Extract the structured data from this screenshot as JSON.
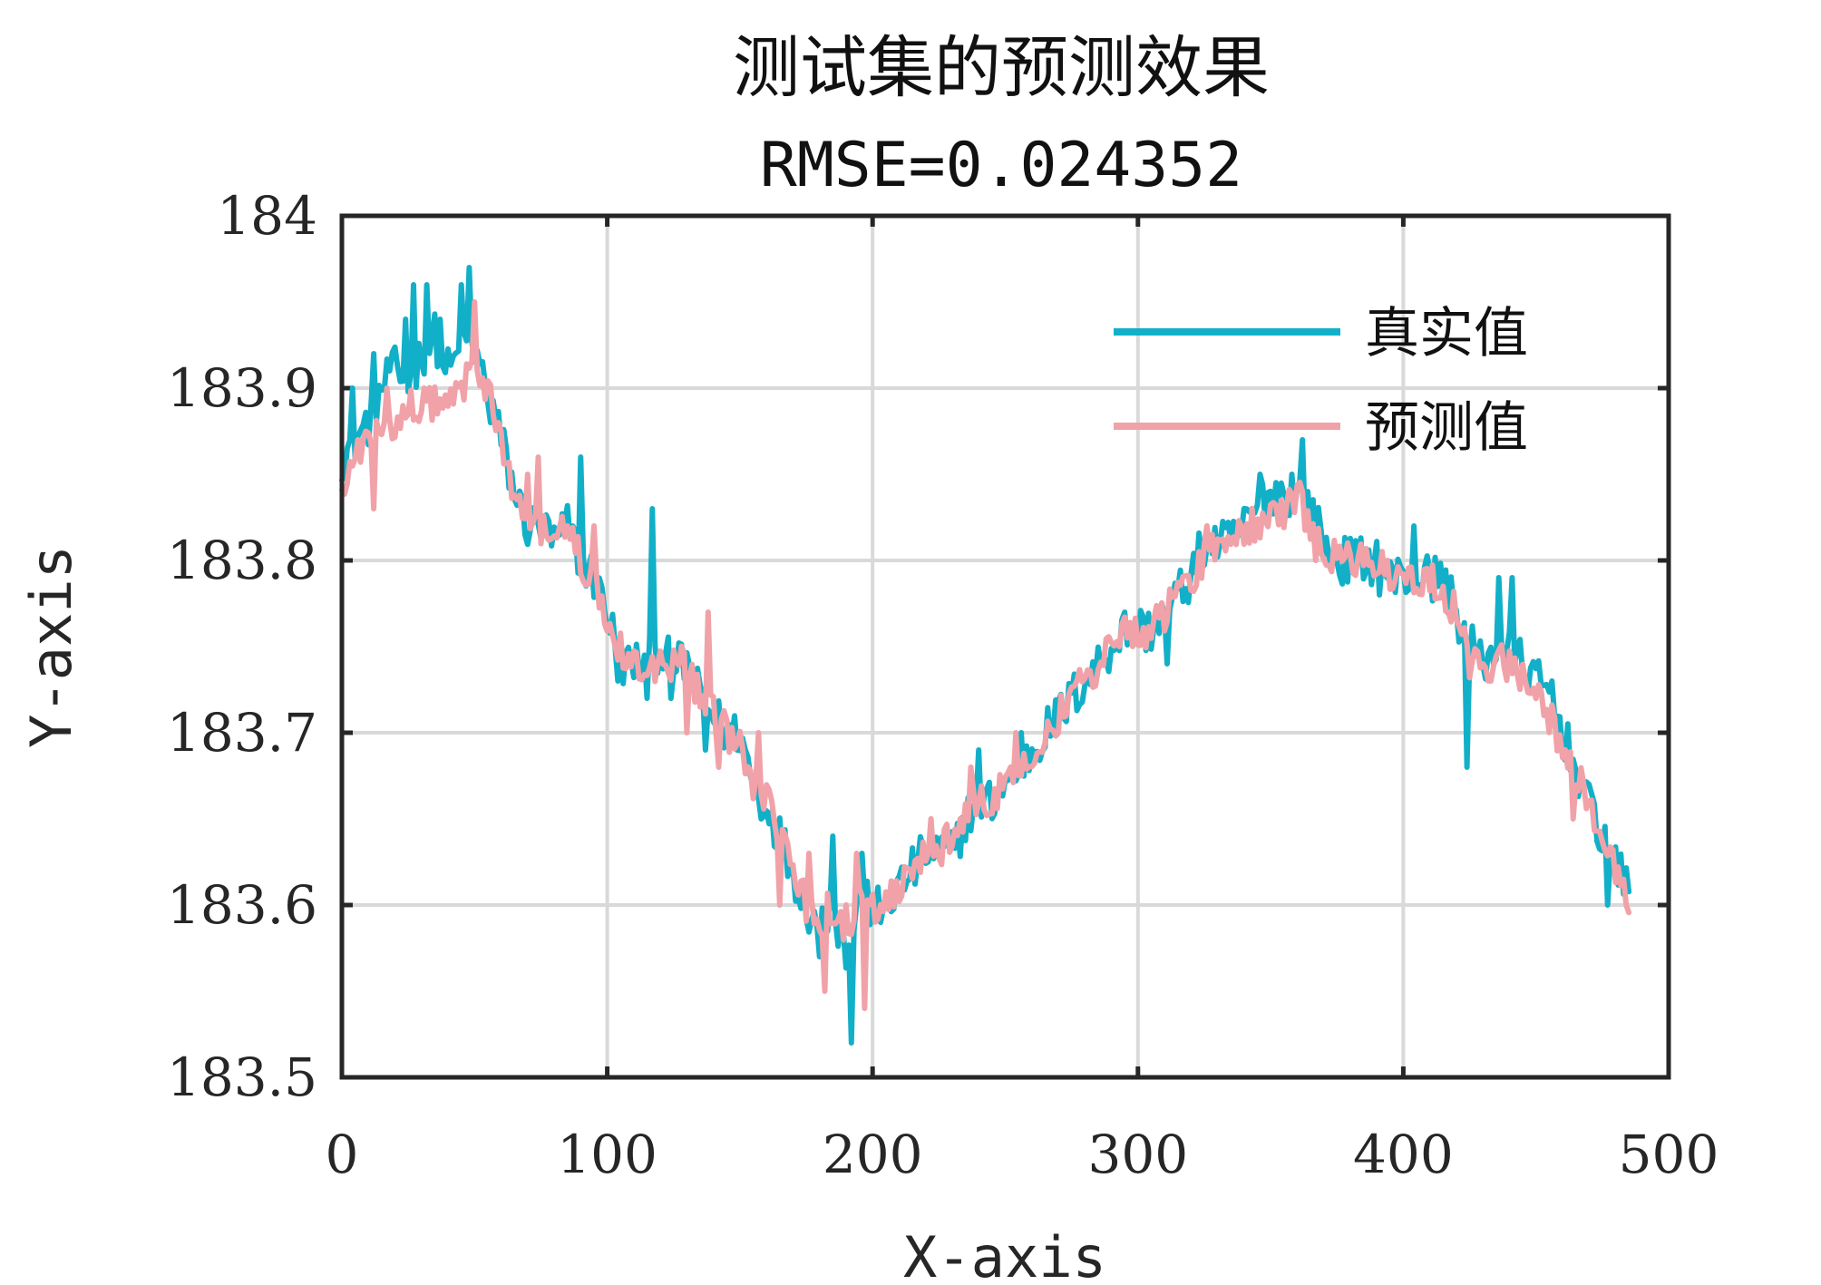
{
  "chart_data": {
    "type": "line",
    "title": "测试集的预测效果",
    "subtitle": "RMSE=0.024352",
    "xlabel": "X-axis",
    "ylabel": "Y-axis",
    "xlim": [
      0,
      500
    ],
    "ylim": [
      183.5,
      184
    ],
    "xticks": [
      "0",
      "100",
      "200",
      "300",
      "400",
      "500"
    ],
    "yticks": [
      "183.5",
      "183.6",
      "183.7",
      "183.8",
      "183.9",
      "184"
    ],
    "grid": true,
    "legend_position": "top-right",
    "colors": {
      "true": "#12b0c8",
      "pred": "#f0a2a8",
      "axis": "#262626",
      "grid": "#d9d9d9"
    },
    "series": [
      {
        "name": "真实值",
        "anchors_x": [
          0,
          5,
          10,
          15,
          20,
          25,
          30,
          35,
          40,
          45,
          50,
          55,
          60,
          65,
          70,
          75,
          80,
          85,
          90,
          95,
          100,
          105,
          110,
          115,
          120,
          125,
          130,
          135,
          140,
          145,
          150,
          155,
          160,
          165,
          170,
          175,
          180,
          185,
          190,
          195,
          200,
          205,
          210,
          215,
          220,
          225,
          230,
          235,
          240,
          245,
          250,
          255,
          260,
          265,
          270,
          275,
          280,
          285,
          290,
          295,
          300,
          305,
          310,
          315,
          320,
          325,
          330,
          335,
          340,
          345,
          350,
          355,
          360,
          365,
          370,
          375,
          380,
          385,
          390,
          395,
          400,
          405,
          410,
          415,
          420,
          425,
          430,
          435,
          440,
          445,
          450,
          455,
          460,
          465,
          470,
          475,
          480,
          485
        ],
        "anchors_y": [
          183.86,
          183.87,
          183.88,
          183.9,
          183.91,
          183.9,
          183.92,
          183.93,
          183.91,
          183.92,
          183.92,
          183.9,
          183.87,
          183.84,
          183.82,
          183.82,
          183.81,
          183.82,
          183.8,
          183.79,
          183.77,
          183.74,
          183.74,
          183.74,
          183.75,
          183.74,
          183.74,
          183.72,
          183.71,
          183.7,
          183.7,
          183.67,
          183.66,
          183.64,
          183.62,
          183.6,
          183.59,
          183.6,
          183.57,
          183.6,
          183.6,
          183.6,
          183.61,
          183.62,
          183.63,
          183.63,
          183.63,
          183.65,
          183.66,
          183.66,
          183.67,
          183.68,
          183.69,
          183.7,
          183.71,
          183.72,
          183.73,
          183.74,
          183.75,
          183.76,
          183.76,
          183.76,
          183.77,
          183.78,
          183.79,
          183.81,
          183.81,
          183.81,
          183.82,
          183.83,
          183.84,
          183.84,
          183.84,
          183.83,
          183.81,
          183.8,
          183.8,
          183.8,
          183.8,
          183.79,
          183.79,
          183.79,
          183.79,
          183.79,
          183.77,
          183.75,
          183.74,
          183.75,
          183.75,
          183.74,
          183.73,
          183.72,
          183.7,
          183.68,
          183.66,
          183.64,
          183.62,
          183.61
        ],
        "spikes": [
          [
            4,
            183.9
          ],
          [
            12,
            183.92
          ],
          [
            18,
            183.91
          ],
          [
            24,
            183.94
          ],
          [
            27,
            183.96
          ],
          [
            32,
            183.96
          ],
          [
            37,
            183.94
          ],
          [
            45,
            183.96
          ],
          [
            48,
            183.97
          ],
          [
            56,
            183.88
          ],
          [
            90,
            183.86
          ],
          [
            104,
            183.73
          ],
          [
            115,
            183.72
          ],
          [
            117,
            183.83
          ],
          [
            124,
            183.72
          ],
          [
            137,
            183.69
          ],
          [
            158,
            183.65
          ],
          [
            180,
            183.57
          ],
          [
            185,
            183.64
          ],
          [
            188,
            183.59
          ],
          [
            192,
            183.52
          ],
          [
            196,
            183.63
          ],
          [
            203,
            183.59
          ],
          [
            240,
            183.69
          ],
          [
            256,
            183.7
          ],
          [
            311,
            183.74
          ],
          [
            346,
            183.85
          ],
          [
            358,
            183.85
          ],
          [
            362,
            183.87
          ],
          [
            391,
            183.78
          ],
          [
            404,
            183.82
          ],
          [
            424,
            183.68
          ],
          [
            436,
            183.79
          ],
          [
            441,
            183.79
          ],
          [
            456,
            183.73
          ],
          [
            470,
            183.67
          ],
          [
            477,
            183.6
          ]
        ]
      },
      {
        "name": "预测值",
        "anchors_x": [
          0,
          5,
          10,
          15,
          20,
          25,
          30,
          35,
          40,
          45,
          50,
          55,
          60,
          65,
          70,
          75,
          80,
          85,
          90,
          95,
          100,
          105,
          110,
          115,
          120,
          125,
          130,
          135,
          140,
          145,
          150,
          155,
          160,
          165,
          170,
          175,
          180,
          185,
          190,
          195,
          200,
          205,
          210,
          215,
          220,
          225,
          230,
          235,
          240,
          245,
          250,
          255,
          260,
          265,
          270,
          275,
          280,
          285,
          290,
          295,
          300,
          305,
          310,
          315,
          320,
          325,
          330,
          335,
          340,
          345,
          350,
          355,
          360,
          365,
          370,
          375,
          380,
          385,
          390,
          395,
          400,
          405,
          410,
          415,
          420,
          425,
          430,
          435,
          440,
          445,
          450,
          455,
          460,
          465,
          470,
          475,
          480,
          485
        ],
        "anchors_y": [
          183.84,
          183.86,
          183.87,
          183.88,
          183.88,
          183.89,
          183.89,
          183.89,
          183.89,
          183.9,
          183.91,
          183.9,
          183.87,
          183.84,
          183.82,
          183.82,
          183.81,
          183.82,
          183.8,
          183.79,
          183.76,
          183.75,
          183.74,
          183.74,
          183.74,
          183.74,
          183.74,
          183.72,
          183.71,
          183.7,
          183.69,
          183.67,
          183.66,
          183.64,
          183.62,
          183.6,
          183.59,
          183.6,
          183.58,
          183.6,
          183.6,
          183.6,
          183.61,
          183.62,
          183.63,
          183.63,
          183.64,
          183.65,
          183.66,
          183.66,
          183.67,
          183.68,
          183.69,
          183.7,
          183.71,
          183.72,
          183.73,
          183.74,
          183.75,
          183.76,
          183.76,
          183.76,
          183.77,
          183.78,
          183.79,
          183.8,
          183.81,
          183.81,
          183.82,
          183.82,
          183.83,
          183.83,
          183.84,
          183.82,
          183.81,
          183.8,
          183.8,
          183.8,
          183.8,
          183.79,
          183.79,
          183.79,
          183.79,
          183.78,
          183.77,
          183.74,
          183.74,
          183.74,
          183.74,
          183.73,
          183.72,
          183.71,
          183.69,
          183.68,
          183.66,
          183.64,
          183.62,
          183.6
        ],
        "spikes": [
          [
            6,
            183.87
          ],
          [
            12,
            183.83
          ],
          [
            17,
            183.9
          ],
          [
            31,
            183.9
          ],
          [
            50,
            183.95
          ],
          [
            59,
            183.88
          ],
          [
            70,
            183.85
          ],
          [
            74,
            183.86
          ],
          [
            85,
            183.82
          ],
          [
            95,
            183.82
          ],
          [
            103,
            183.75
          ],
          [
            130,
            183.7
          ],
          [
            138,
            183.77
          ],
          [
            142,
            183.68
          ],
          [
            157,
            183.7
          ],
          [
            165,
            183.6
          ],
          [
            176,
            183.63
          ],
          [
            182,
            183.55
          ],
          [
            190,
            183.6
          ],
          [
            194,
            183.63
          ],
          [
            197,
            183.54
          ],
          [
            222,
            183.65
          ],
          [
            237,
            183.68
          ],
          [
            254,
            183.7
          ],
          [
            293,
            183.75
          ],
          [
            326,
            183.82
          ],
          [
            362,
            183.84
          ],
          [
            367,
            183.8
          ],
          [
            394,
            183.8
          ],
          [
            417,
            183.77
          ],
          [
            430,
            183.74
          ],
          [
            446,
            183.73
          ],
          [
            464,
            183.65
          ],
          [
            484,
            183.6
          ]
        ]
      }
    ]
  }
}
